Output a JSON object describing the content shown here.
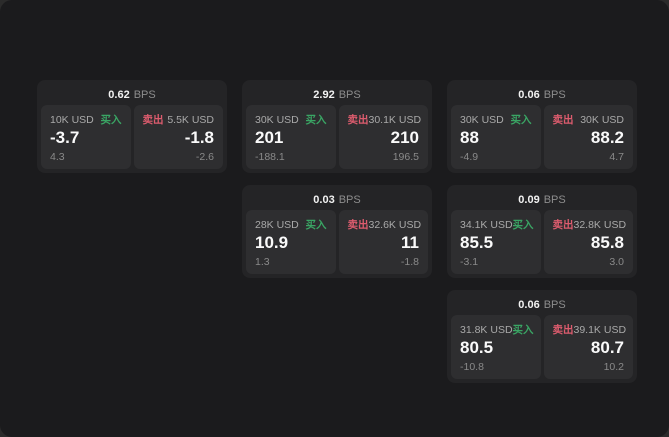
{
  "labels": {
    "bps_suffix": "BPS",
    "buy": "买入",
    "sell": "卖出"
  },
  "colors": {
    "buy": "#3aa564",
    "sell": "#dd5c6e",
    "page_bg": "#1b1b1d",
    "card_bg": "#242426",
    "pane_bg": "#2e2e30"
  },
  "cards": [
    {
      "row": 1,
      "col": 1,
      "bps": "0.62",
      "buy": {
        "amount": "10K USD",
        "price": "-3.7",
        "change": "4.3"
      },
      "sell": {
        "amount": "5.5K USD",
        "price": "-1.8",
        "change": "-2.6"
      }
    },
    {
      "row": 1,
      "col": 2,
      "bps": "2.92",
      "buy": {
        "amount": "30K USD",
        "price": "201",
        "change": "-188.1"
      },
      "sell": {
        "amount": "30.1K USD",
        "price": "210",
        "change": "196.5"
      }
    },
    {
      "row": 1,
      "col": 3,
      "bps": "0.06",
      "buy": {
        "amount": "30K USD",
        "price": "88",
        "change": "-4.9"
      },
      "sell": {
        "amount": "30K USD",
        "price": "88.2",
        "change": "4.7"
      }
    },
    {
      "row": 2,
      "col": 2,
      "bps": "0.03",
      "buy": {
        "amount": "28K USD",
        "price": "10.9",
        "change": "1.3"
      },
      "sell": {
        "amount": "32.6K USD",
        "price": "11",
        "change": "-1.8"
      }
    },
    {
      "row": 2,
      "col": 3,
      "bps": "0.09",
      "buy": {
        "amount": "34.1K USD",
        "price": "85.5",
        "change": "-3.1"
      },
      "sell": {
        "amount": "32.8K USD",
        "price": "85.8",
        "change": "3.0"
      }
    },
    {
      "row": 3,
      "col": 3,
      "bps": "0.06",
      "buy": {
        "amount": "31.8K USD",
        "price": "80.5",
        "change": "-10.8"
      },
      "sell": {
        "amount": "39.1K USD",
        "price": "80.7",
        "change": "10.2"
      }
    }
  ]
}
